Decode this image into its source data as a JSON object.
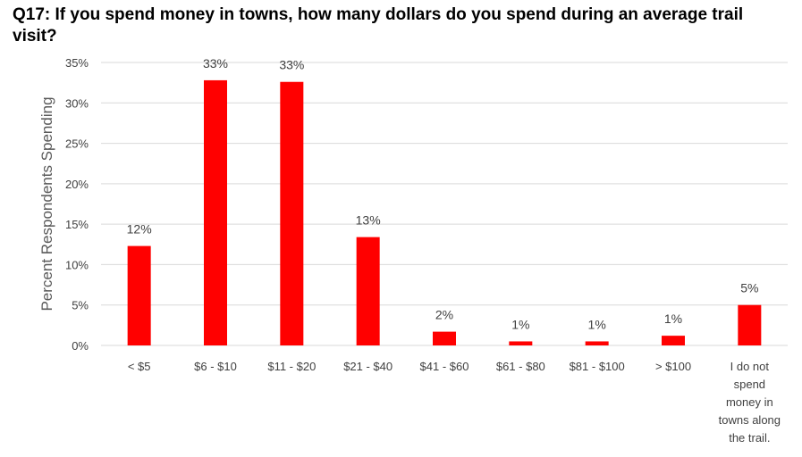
{
  "chart_data": {
    "type": "bar",
    "title": "Q17: If you spend money in towns, how many dollars do you spend during an average trail visit?",
    "xlabel": "",
    "ylabel": "Percent Respondents Spending",
    "categories": [
      "< $5",
      "$6 - $10",
      "$11 - $20",
      "$21 - $40",
      "$41 - $60",
      "$61 - $80",
      "$81 - $100",
      "> $100",
      "I do not spend money in towns along the trail."
    ],
    "category_lines": [
      [
        "< $5"
      ],
      [
        "$6 - $10"
      ],
      [
        "$11 - $20"
      ],
      [
        "$21 - $40"
      ],
      [
        "$41 - $60"
      ],
      [
        "$61 - $80"
      ],
      [
        "$81 - $100"
      ],
      [
        "> $100"
      ],
      [
        "I do not",
        "spend",
        "money in",
        "towns along",
        "the trail."
      ]
    ],
    "values": [
      12.3,
      32.8,
      32.6,
      13.4,
      1.7,
      0.5,
      0.5,
      1.2,
      5.0
    ],
    "data_labels": [
      "12%",
      "33%",
      "33%",
      "13%",
      "2%",
      "1%",
      "1%",
      "1%",
      "5%"
    ],
    "ylim": [
      0,
      35
    ],
    "yticks": [
      0,
      5,
      10,
      15,
      20,
      25,
      30,
      35
    ],
    "ytick_labels": [
      "0%",
      "5%",
      "10%",
      "15%",
      "20%",
      "25%",
      "30%",
      "35%"
    ],
    "grid": true,
    "legend": "none",
    "bar_color": "#FF0000",
    "grid_color": "#D9D9D9"
  }
}
